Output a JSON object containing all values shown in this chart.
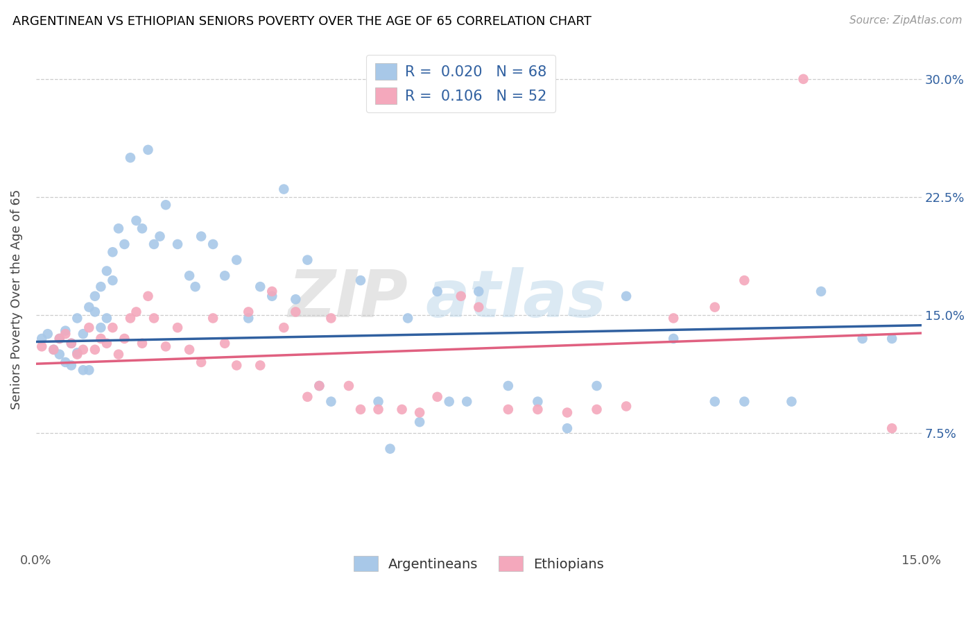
{
  "title": "ARGENTINEAN VS ETHIOPIAN SENIORS POVERTY OVER THE AGE OF 65 CORRELATION CHART",
  "source": "Source: ZipAtlas.com",
  "ylabel": "Seniors Poverty Over the Age of 65",
  "xlim": [
    0.0,
    0.15
  ],
  "ylim": [
    0.0,
    0.32
  ],
  "xticks": [
    0.0,
    0.03,
    0.06,
    0.09,
    0.12,
    0.15
  ],
  "xtick_labels": [
    "0.0%",
    "",
    "",
    "",
    "",
    "15.0%"
  ],
  "yticks_right": [
    0.075,
    0.15,
    0.225,
    0.3
  ],
  "ytick_labels_right": [
    "7.5%",
    "15.0%",
    "22.5%",
    "30.0%"
  ],
  "argentinean_color": "#a8c8e8",
  "ethiopian_color": "#f4a8bc",
  "argentinean_line_color": "#3060a0",
  "ethiopian_line_color": "#e06080",
  "legend_text_color": "#3060a0",
  "R_arg": 0.02,
  "N_arg": 68,
  "R_eth": 0.106,
  "N_eth": 52,
  "watermark_part1": "ZIP",
  "watermark_part2": "atlas",
  "argentinean_x": [
    0.001,
    0.002,
    0.003,
    0.004,
    0.004,
    0.005,
    0.005,
    0.006,
    0.006,
    0.007,
    0.007,
    0.008,
    0.008,
    0.009,
    0.009,
    0.01,
    0.01,
    0.011,
    0.011,
    0.012,
    0.012,
    0.013,
    0.013,
    0.014,
    0.015,
    0.016,
    0.017,
    0.018,
    0.019,
    0.02,
    0.021,
    0.022,
    0.024,
    0.026,
    0.027,
    0.028,
    0.03,
    0.032,
    0.034,
    0.036,
    0.038,
    0.04,
    0.042,
    0.044,
    0.046,
    0.048,
    0.05,
    0.055,
    0.058,
    0.06,
    0.063,
    0.065,
    0.068,
    0.07,
    0.073,
    0.075,
    0.08,
    0.085,
    0.09,
    0.095,
    0.1,
    0.108,
    0.115,
    0.12,
    0.128,
    0.133,
    0.14,
    0.145
  ],
  "argentinean_y": [
    0.135,
    0.138,
    0.128,
    0.125,
    0.135,
    0.12,
    0.14,
    0.118,
    0.132,
    0.126,
    0.148,
    0.115,
    0.138,
    0.115,
    0.155,
    0.152,
    0.162,
    0.142,
    0.168,
    0.178,
    0.148,
    0.172,
    0.19,
    0.205,
    0.195,
    0.25,
    0.21,
    0.205,
    0.255,
    0.195,
    0.2,
    0.22,
    0.195,
    0.175,
    0.168,
    0.2,
    0.195,
    0.175,
    0.185,
    0.148,
    0.168,
    0.162,
    0.23,
    0.16,
    0.185,
    0.105,
    0.095,
    0.172,
    0.095,
    0.065,
    0.148,
    0.082,
    0.165,
    0.095,
    0.095,
    0.165,
    0.105,
    0.095,
    0.078,
    0.105,
    0.162,
    0.135,
    0.095,
    0.095,
    0.095,
    0.165,
    0.135,
    0.135
  ],
  "ethiopian_x": [
    0.001,
    0.003,
    0.004,
    0.005,
    0.006,
    0.007,
    0.008,
    0.009,
    0.01,
    0.011,
    0.012,
    0.013,
    0.014,
    0.015,
    0.016,
    0.017,
    0.018,
    0.019,
    0.02,
    0.022,
    0.024,
    0.026,
    0.028,
    0.03,
    0.032,
    0.034,
    0.036,
    0.038,
    0.04,
    0.042,
    0.044,
    0.046,
    0.048,
    0.05,
    0.053,
    0.055,
    0.058,
    0.062,
    0.065,
    0.068,
    0.072,
    0.075,
    0.08,
    0.085,
    0.09,
    0.095,
    0.1,
    0.108,
    0.115,
    0.12,
    0.13,
    0.145
  ],
  "ethiopian_y": [
    0.13,
    0.128,
    0.135,
    0.138,
    0.132,
    0.125,
    0.128,
    0.142,
    0.128,
    0.135,
    0.132,
    0.142,
    0.125,
    0.135,
    0.148,
    0.152,
    0.132,
    0.162,
    0.148,
    0.13,
    0.142,
    0.128,
    0.12,
    0.148,
    0.132,
    0.118,
    0.152,
    0.118,
    0.165,
    0.142,
    0.152,
    0.098,
    0.105,
    0.148,
    0.105,
    0.09,
    0.09,
    0.09,
    0.088,
    0.098,
    0.162,
    0.155,
    0.09,
    0.09,
    0.088,
    0.09,
    0.092,
    0.148,
    0.155,
    0.172,
    0.3,
    0.078
  ]
}
